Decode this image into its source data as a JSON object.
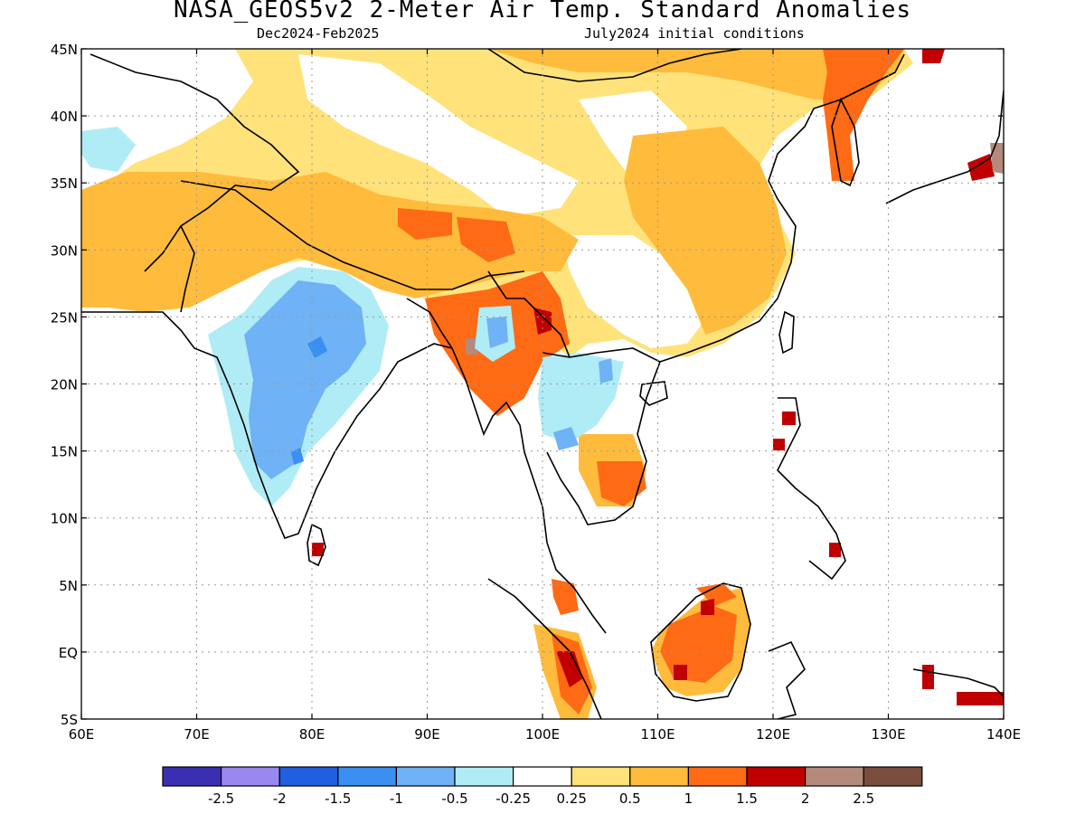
{
  "header": {
    "title": "NASA_GEOS5v2 2-Meter Air Temp. Standard Anomalies",
    "period": "Dec2024-Feb2025",
    "init": "July2024 initial conditions"
  },
  "map": {
    "lon_ticks": [
      "60E",
      "70E",
      "80E",
      "90E",
      "100E",
      "110E",
      "120E",
      "130E",
      "140E"
    ],
    "lat_ticks": [
      "45N",
      "40N",
      "35N",
      "30N",
      "25N",
      "20N",
      "15N",
      "10N",
      "5N",
      "EQ",
      "5S"
    ],
    "lon_range": [
      60,
      140
    ],
    "lat_range": [
      -5,
      45
    ]
  },
  "colorbar": {
    "colors": [
      "#3a2fb0",
      "#9a87f0",
      "#1f5fe0",
      "#3a8ff0",
      "#6fb2f5",
      "#b0ecf5",
      "#ffffff",
      "#ffe27a",
      "#ffbb3c",
      "#ff6a14",
      "#c00000",
      "#b38a7c",
      "#7a4e3f"
    ],
    "labels": [
      "-2.5",
      "-2",
      "-1.5",
      "-1",
      "-0.5",
      "-0.25",
      "0.25",
      "0.5",
      "1",
      "1.5",
      "2",
      "2.5"
    ]
  },
  "anomaly_fields": {
    "warm_light": "#ffe27a",
    "warm": "#ffbb3c",
    "warm_strong": "#ff6a14",
    "hot": "#c00000",
    "very_hot": "#b38a7c",
    "cool_light": "#b0ecf5",
    "cool": "#6fb2f5",
    "cool_strong": "#3a8ff0"
  }
}
